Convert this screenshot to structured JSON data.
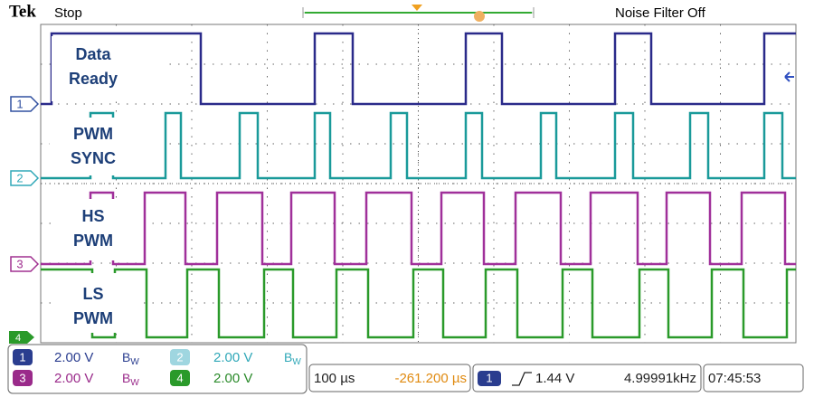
{
  "header": {
    "brand": "Tek",
    "status": "Stop",
    "noise_filter": "Noise Filter Off"
  },
  "channels": [
    {
      "marker": "1",
      "label_lines": [
        "Data",
        "Ready"
      ]
    },
    {
      "marker": "2",
      "label_lines": [
        "PWM",
        "SYNC"
      ]
    },
    {
      "marker": "3",
      "label_lines": [
        "HS",
        "PWM"
      ]
    },
    {
      "marker": "4",
      "label_lines": [
        "LS",
        "PWM"
      ]
    }
  ],
  "status_bar": {
    "channels": [
      {
        "number": "1",
        "scale": "2.00 V",
        "bw": {
          "base": "B",
          "sub": "W"
        }
      },
      {
        "number": "2",
        "scale": "2.00 V",
        "bw": {
          "base": "B",
          "sub": "W"
        }
      },
      {
        "number": "3",
        "scale": "2.00 V",
        "bw": {
          "base": "B",
          "sub": "W"
        }
      },
      {
        "number": "4",
        "scale": "2.00 V"
      }
    ],
    "timebase": "100 µs",
    "position": "-261.200 µs",
    "trigger": {
      "source": "1",
      "level": "1.44 V",
      "frequency": "4.99991kHz"
    },
    "clock": "07:45:53"
  }
}
